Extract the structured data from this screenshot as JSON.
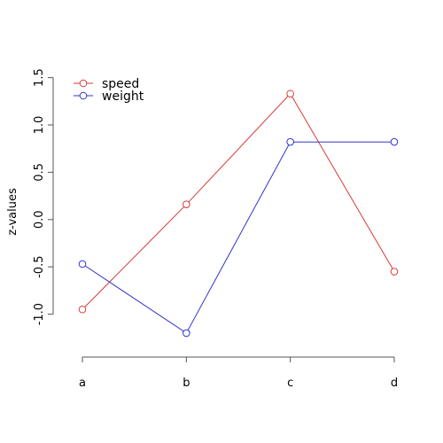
{
  "chart_data": {
    "type": "line",
    "categories": [
      "a",
      "b",
      "c",
      "d"
    ],
    "series": [
      {
        "name": "speed",
        "color": "#d83a3a",
        "values": [
          -0.95,
          0.16,
          1.33,
          -0.55
        ]
      },
      {
        "name": "weight",
        "color": "#3333cc",
        "values": [
          -0.47,
          -1.2,
          0.82,
          0.82
        ]
      }
    ],
    "title": "",
    "xlabel": "",
    "ylabel": "z-values",
    "ylim": [
      -1.3,
      1.55
    ],
    "yticks": [
      "-1.0",
      "-0.5",
      "0.0",
      "0.5",
      "1.0",
      "1.5"
    ],
    "ytick_values": [
      -1.0,
      -0.5,
      0.0,
      0.5,
      1.0,
      1.5
    ],
    "markers": "open-circle",
    "grid": false,
    "legend_position": "top-left"
  }
}
